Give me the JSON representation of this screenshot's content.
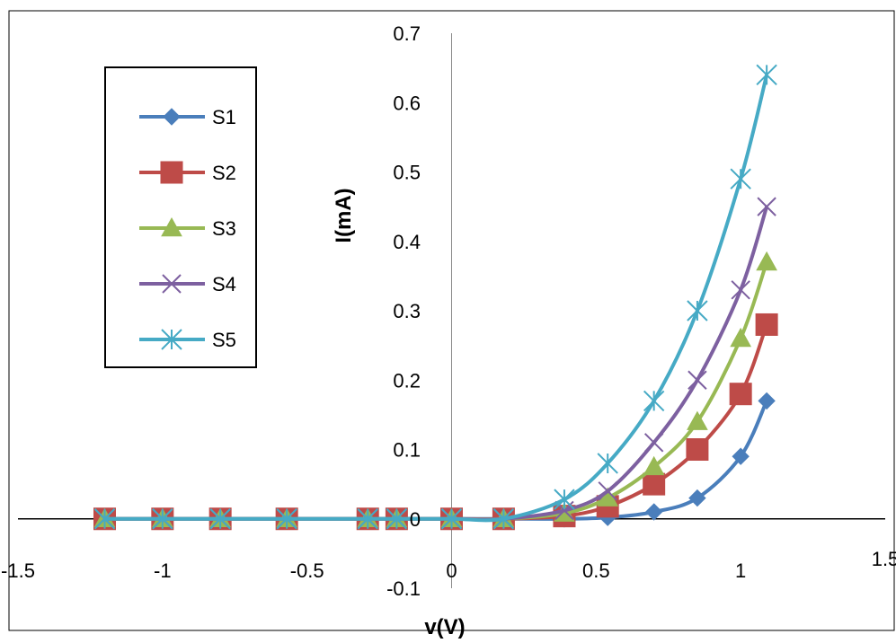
{
  "chart_data": {
    "type": "line",
    "xlabel": "v(V)",
    "ylabel": "I(mA)",
    "xlim": [
      -1.5,
      1.5
    ],
    "ylim": [
      -0.1,
      0.7
    ],
    "x_ticks": [
      "-1.5",
      "-1",
      "-0.5",
      "0",
      "0.5",
      "1",
      "1.5"
    ],
    "y_ticks": [
      "-0.1",
      "0",
      "0.1",
      "0.2",
      "0.3",
      "0.4",
      "0.5",
      "0.6",
      "0.7"
    ],
    "grid": false,
    "legend_position": "top-left",
    "x": [
      -1.2,
      -1.0,
      -0.8,
      -0.57,
      -0.29,
      -0.19,
      0.0,
      0.18,
      0.39,
      0.54,
      0.7,
      0.85,
      1.0,
      1.09
    ],
    "series": [
      {
        "name": "S1",
        "color": "#4a7ebb",
        "marker": "diamond",
        "values": [
          0,
          0,
          0,
          0,
          0,
          0,
          0,
          0,
          0,
          0.002,
          0.01,
          0.03,
          0.09,
          0.17
        ]
      },
      {
        "name": "S2",
        "color": "#be4b48",
        "marker": "square",
        "values": [
          0,
          0,
          0,
          0,
          0,
          0,
          0,
          0,
          0.004,
          0.018,
          0.05,
          0.1,
          0.18,
          0.28
        ]
      },
      {
        "name": "S3",
        "color": "#98b954",
        "marker": "triangle",
        "values": [
          0,
          0,
          0,
          0,
          0,
          0,
          0,
          0,
          0.008,
          0.03,
          0.075,
          0.14,
          0.26,
          0.37
        ]
      },
      {
        "name": "S4",
        "color": "#7d60a0",
        "marker": "x",
        "values": [
          0,
          0,
          0,
          0,
          0,
          0,
          0,
          0,
          0.012,
          0.04,
          0.11,
          0.2,
          0.33,
          0.45
        ]
      },
      {
        "name": "S5",
        "color": "#46aac5",
        "marker": "star",
        "values": [
          0,
          0,
          0,
          0,
          0,
          0,
          0,
          0,
          0.028,
          0.08,
          0.17,
          0.3,
          0.49,
          0.64
        ]
      }
    ]
  }
}
